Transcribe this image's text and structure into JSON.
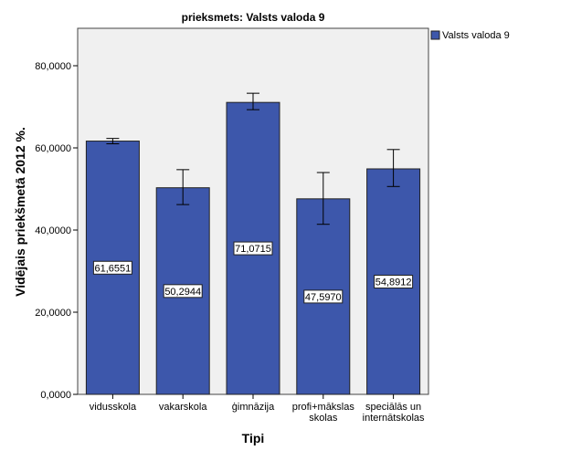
{
  "chart_data": {
    "type": "bar",
    "title": "prieksmets: Valsts valoda 9",
    "xlabel": "Tipi",
    "ylabel": "Vidējais priekšmetā 2012 %.",
    "ylim": [
      0,
      89
    ],
    "yticks": [
      0,
      20,
      40,
      60,
      80
    ],
    "ytick_labels": [
      "0,0000",
      "20,0000",
      "40,0000",
      "60,0000",
      "80,0000"
    ],
    "categories": [
      [
        "vidusskola"
      ],
      [
        "vakarskola"
      ],
      [
        "ģimnāzija"
      ],
      [
        "profi+mākslas",
        "skolas"
      ],
      [
        "speciālās un",
        "internātskolas"
      ]
    ],
    "series": [
      {
        "name": "Valsts valoda 9",
        "color": "#3d57ab",
        "values": [
          61.6551,
          50.2944,
          71.0715,
          47.597,
          54.8912
        ],
        "value_labels": [
          "61,6551",
          "50,2944",
          "71,0715",
          "47,5970",
          "54,8912"
        ],
        "error_low": [
          61.0,
          46.2,
          69.3,
          41.4,
          50.6
        ],
        "error_high": [
          62.3,
          54.7,
          73.3,
          54.0,
          59.6
        ]
      }
    ],
    "legend": "right",
    "grid": false
  }
}
